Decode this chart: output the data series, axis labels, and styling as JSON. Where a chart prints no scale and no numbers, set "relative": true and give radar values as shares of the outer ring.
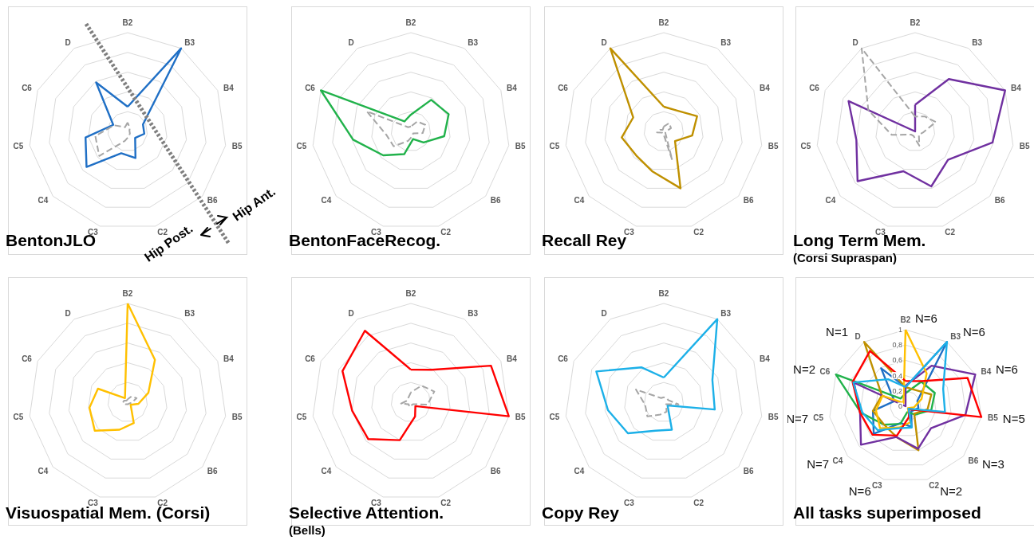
{
  "chart_data": [
    {
      "type": "radar",
      "title": "BentonJLO",
      "relative": true,
      "marker": "none",
      "categories": [
        "B2",
        "B3",
        "B4",
        "B5",
        "B6",
        "C2",
        "C3",
        "C4",
        "C5",
        "C6",
        "D"
      ],
      "annotations": [
        "Hip Post.",
        "Hip Ant."
      ],
      "series": [
        {
          "color": "#1f6fc5",
          "line_style": "solid",
          "values": [
            0.25,
            1.0,
            0.17,
            0.17,
            0.1,
            0.28,
            0.23,
            0.55,
            0.43,
            0.16,
            0.59
          ]
        },
        {
          "color": "#a6a6a6",
          "line_style": "dashed",
          "values": [
            0.09,
            0.04,
            0.02,
            0.02,
            0.03,
            0.05,
            0.1,
            0.38,
            0.33,
            0.15,
            0.05
          ]
        }
      ]
    },
    {
      "type": "radar",
      "title": "BentonFaceRecog.",
      "relative": true,
      "marker": "none",
      "categories": [
        "B2",
        "B3",
        "B4",
        "B5",
        "B6",
        "C2",
        "C3",
        "C4",
        "C5",
        "C6",
        "D"
      ],
      "series": [
        {
          "color": "#21b24b",
          "line_style": "solid",
          "values": [
            0.17,
            0.38,
            0.42,
            0.34,
            0.17,
            0.08,
            0.24,
            0.37,
            0.59,
            1.0,
            0.12
          ]
        },
        {
          "color": "#a6a6a6",
          "line_style": "dashed",
          "values": [
            0.05,
            0.12,
            0.16,
            0.12,
            0.03,
            0.05,
            0.1,
            0.23,
            0.25,
            0.49,
            0.05
          ]
        }
      ]
    },
    {
      "type": "radar",
      "title": "Recall Rey",
      "relative": true,
      "marker": "none",
      "categories": [
        "B2",
        "B3",
        "B4",
        "B5",
        "B6",
        "C2",
        "C3",
        "C4",
        "C5",
        "C6",
        "D"
      ],
      "series": [
        {
          "color": "#bf9000",
          "line_style": "solid",
          "values": [
            0.25,
            0.25,
            0.37,
            0.29,
            0.15,
            0.6,
            0.42,
            0.37,
            0.43,
            0.34,
            1.0
          ]
        },
        {
          "color": "#a6a6a6",
          "line_style": "dashed",
          "values": [
            0.05,
            0.1,
            0.08,
            0.02,
            0.02,
            0.3,
            0.02,
            0.02,
            0.07,
            0.04,
            0.02
          ]
        }
      ]
    },
    {
      "type": "radar",
      "title": "Long Term Mem.",
      "subtitle": "(Corsi Supraspan)",
      "relative": true,
      "marker": "none",
      "categories": [
        "B2",
        "B3",
        "B4",
        "B5",
        "B6",
        "C2",
        "C3",
        "C4",
        "C5",
        "C6",
        "D"
      ],
      "series": [
        {
          "color": "#7030a0",
          "line_style": "solid",
          "values": [
            0.27,
            0.63,
            1.0,
            0.79,
            0.44,
            0.58,
            0.42,
            0.77,
            0.6,
            0.74,
            0
          ]
        },
        {
          "color": "#a6a6a6",
          "line_style": "dashed",
          "values": [
            0.15,
            0.18,
            0.23,
            0.08,
            0.05,
            0.15,
            0.05,
            0.05,
            0.24,
            0.52,
            1.0
          ]
        }
      ]
    },
    {
      "type": "radar",
      "title": "Visuospatial Mem. (Corsi)",
      "relative": true,
      "marker": "none",
      "categories": [
        "B2",
        "B3",
        "B4",
        "B5",
        "B6",
        "C2",
        "C3",
        "C4",
        "C5",
        "C6",
        "D"
      ],
      "series": [
        {
          "color": "#ffc000",
          "line_style": "solid",
          "values": [
            1.0,
            0.51,
            0.23,
            0.11,
            0.04,
            0.22,
            0.29,
            0.44,
            0.39,
            0.33,
            0.05
          ]
        },
        {
          "color": "#a6a6a6",
          "line_style": "dashed",
          "values": [
            0.03,
            0.07,
            0.1,
            0.04,
            0.02,
            0.02,
            0.02,
            0.03,
            0.05,
            0.04,
            0.02
          ]
        }
      ]
    },
    {
      "type": "radar",
      "title": "Selective Attention.",
      "subtitle": "(Bells)",
      "relative": true,
      "marker": "none",
      "categories": [
        "B2",
        "B3",
        "B4",
        "B5",
        "B6",
        "C2",
        "C3",
        "C4",
        "C5",
        "C6",
        "D"
      ],
      "series": [
        {
          "color": "#ff0000",
          "line_style": "solid",
          "values": [
            0.33,
            0.39,
            0.89,
            1.0,
            0.06,
            0.15,
            0.4,
            0.57,
            0.6,
            0.76,
            0.86
          ]
        },
        {
          "color": "#a6a6a6",
          "line_style": "dashed",
          "values": [
            0.1,
            0.2,
            0.26,
            0.17,
            0.03,
            0.03,
            0.05,
            0.03,
            0.1,
            0.04,
            0.05
          ]
        }
      ]
    },
    {
      "type": "radar",
      "title": "Copy Rey",
      "relative": true,
      "marker": "none",
      "categories": [
        "B2",
        "B3",
        "B4",
        "B5",
        "B6",
        "C2",
        "C3",
        "C4",
        "C5",
        "C6",
        "D"
      ],
      "series": [
        {
          "color": "#1cb0e8",
          "line_style": "solid",
          "values": [
            0.25,
            1.0,
            0.54,
            0.52,
            0.05,
            0.29,
            0.3,
            0.48,
            0.57,
            0.75,
            0.42
          ]
        },
        {
          "color": "#a6a6a6",
          "line_style": "dashed",
          "values": [
            0.05,
            0.05,
            0.05,
            0.15,
            0.03,
            0.1,
            0.13,
            0.22,
            0.19,
            0.31,
            0.05
          ]
        }
      ]
    },
    {
      "type": "radar",
      "title": "All tasks superimposed",
      "marker": "none",
      "categories": [
        "B2",
        "B3",
        "B4",
        "B5",
        "B6",
        "C2",
        "C3",
        "C4",
        "C5",
        "C6",
        "D"
      ],
      "ylim": [
        0,
        1
      ],
      "yticks": [
        0,
        {
          "value": 0.2,
          "label": "0,2"
        },
        {
          "value": 0.4,
          "label": "0,4"
        },
        {
          "value": 0.6,
          "label": "0,6"
        },
        {
          "value": 0.8,
          "label": "0,8"
        },
        1
      ],
      "annotations": [
        "N=6",
        "N=6",
        "N=6",
        "N=5",
        "N=3",
        "N=2",
        "N=6",
        "N=7",
        "N=7",
        "N=2",
        "N=1"
      ],
      "series": [
        {
          "color": "#1f6fc5",
          "line_style": "solid",
          "values": [
            0.25,
            1.0,
            0.17,
            0.17,
            0.1,
            0.28,
            0.23,
            0.55,
            0.43,
            0.16,
            0.59
          ]
        },
        {
          "color": "#21b24b",
          "line_style": "solid",
          "values": [
            0.17,
            0.38,
            0.42,
            0.34,
            0.17,
            0.08,
            0.24,
            0.37,
            0.59,
            1.0,
            0.12
          ]
        },
        {
          "color": "#bf9000",
          "line_style": "solid",
          "values": [
            0.25,
            0.25,
            0.37,
            0.29,
            0.15,
            0.6,
            0.42,
            0.37,
            0.43,
            0.34,
            1.0
          ]
        },
        {
          "color": "#7030a0",
          "line_style": "solid",
          "values": [
            0.27,
            0.63,
            1.0,
            0.79,
            0.44,
            0.58,
            0.42,
            0.77,
            0.6,
            0.74,
            0
          ]
        },
        {
          "color": "#ffc000",
          "line_style": "solid",
          "values": [
            1.0,
            0.51,
            0.23,
            0.11,
            0.04,
            0.22,
            0.29,
            0.44,
            0.39,
            0.33,
            0.05
          ]
        },
        {
          "color": "#ff0000",
          "line_style": "solid",
          "values": [
            0.33,
            0.39,
            0.89,
            1.0,
            0.06,
            0.15,
            0.4,
            0.57,
            0.6,
            0.76,
            0.86
          ]
        },
        {
          "color": "#1cb0e8",
          "line_style": "solid",
          "values": [
            0.25,
            1.0,
            0.54,
            0.52,
            0.05,
            0.29,
            0.3,
            0.48,
            0.57,
            0.75,
            0.42
          ]
        }
      ]
    }
  ]
}
